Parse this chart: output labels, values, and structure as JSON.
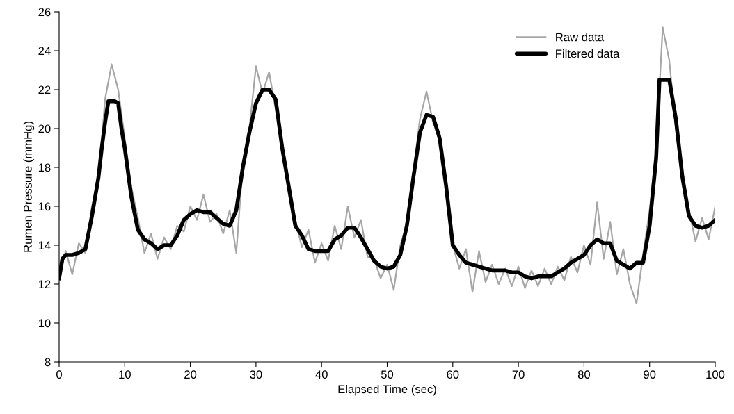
{
  "chart_data": {
    "type": "line",
    "xlabel": "Elapsed Time (sec)",
    "ylabel": "Rumen Pressure (mmHg)",
    "xlim": [
      0,
      100
    ],
    "xticks": [
      0,
      10,
      20,
      30,
      40,
      50,
      60,
      70,
      80,
      90,
      100
    ],
    "ylim": [
      8,
      26
    ],
    "yticks": [
      8,
      10,
      12,
      14,
      16,
      18,
      20,
      22,
      24,
      26
    ],
    "grid": false,
    "legend": "top right",
    "marker": "none",
    "line_style": "solid",
    "series": [
      {
        "name": "Raw data",
        "color": "#a6a6a6",
        "x": [
          0,
          1,
          2,
          3,
          4,
          5,
          6,
          7,
          8,
          9,
          10,
          11,
          12,
          13,
          14,
          15,
          16,
          17,
          18,
          19,
          20,
          21,
          22,
          23,
          24,
          25,
          26,
          27,
          28,
          29,
          30,
          31,
          32,
          33,
          34,
          35,
          36,
          37,
          38,
          39,
          40,
          41,
          42,
          43,
          44,
          45,
          46,
          47,
          48,
          49,
          50,
          51,
          52,
          53,
          54,
          55,
          56,
          57,
          58,
          59,
          60,
          61,
          62,
          63,
          64,
          65,
          66,
          67,
          68,
          69,
          70,
          71,
          72,
          73,
          74,
          75,
          76,
          77,
          78,
          79,
          80,
          81,
          82,
          83,
          84,
          85,
          86,
          87,
          88,
          89,
          90,
          91,
          92,
          93,
          94,
          95,
          96,
          97,
          98,
          99,
          100
        ],
        "values": [
          12.4,
          13.7,
          12.5,
          14.1,
          13.6,
          16.0,
          17.3,
          21.5,
          23.3,
          22.0,
          19.5,
          17.0,
          15.4,
          13.6,
          14.6,
          13.3,
          14.4,
          13.8,
          15.0,
          14.7,
          16.0,
          15.3,
          16.6,
          15.2,
          15.6,
          14.6,
          15.8,
          13.6,
          18.2,
          20.0,
          23.2,
          21.8,
          22.9,
          21.0,
          19.2,
          16.8,
          15.3,
          13.9,
          14.8,
          13.1,
          14.1,
          13.2,
          15.0,
          13.8,
          16.0,
          14.4,
          15.3,
          13.4,
          13.3,
          12.3,
          13.0,
          11.7,
          14.0,
          15.0,
          17.8,
          20.5,
          21.9,
          20.3,
          19.8,
          16.8,
          14.0,
          12.8,
          13.8,
          11.6,
          13.7,
          12.1,
          13.0,
          12.0,
          12.8,
          11.9,
          12.9,
          11.8,
          12.7,
          11.9,
          12.8,
          12.0,
          12.9,
          12.2,
          13.4,
          12.6,
          14.0,
          13.0,
          16.2,
          13.3,
          15.2,
          12.5,
          13.8,
          12.0,
          11.0,
          13.5,
          15.8,
          19.0,
          25.2,
          23.5,
          20.0,
          17.5,
          15.8,
          14.2,
          15.4,
          14.3,
          16.0
        ]
      },
      {
        "name": "Filtered data",
        "color": "#000000",
        "x": [
          0,
          0.5,
          1,
          2,
          3,
          4,
          5,
          6,
          6.5,
          7,
          7.5,
          8.5,
          9,
          9.5,
          10,
          11,
          12,
          13,
          14,
          15,
          16,
          17,
          18,
          19,
          20,
          21,
          22,
          23,
          24,
          25,
          26,
          27,
          28,
          29,
          30,
          31,
          32,
          33,
          34,
          35,
          36,
          37,
          38,
          39,
          40,
          41,
          42,
          43,
          44,
          45,
          46,
          47,
          48,
          49,
          50,
          51,
          52,
          53,
          54,
          55,
          56,
          57,
          58,
          59,
          60,
          61,
          62,
          63,
          64,
          65,
          66,
          67,
          68,
          69,
          70,
          71,
          72,
          73,
          74,
          75,
          76,
          77,
          78,
          79,
          80,
          81,
          82,
          83,
          84,
          85,
          86,
          87,
          88,
          89,
          90,
          91,
          91.5,
          93,
          94,
          95,
          96,
          97,
          98,
          99,
          100
        ],
        "values": [
          12.3,
          13.3,
          13.5,
          13.5,
          13.6,
          13.8,
          15.5,
          17.5,
          19.0,
          20.3,
          21.4,
          21.4,
          21.3,
          20.0,
          19.0,
          16.5,
          14.8,
          14.3,
          14.1,
          13.8,
          14.0,
          14.0,
          14.5,
          15.3,
          15.6,
          15.8,
          15.7,
          15.7,
          15.4,
          15.1,
          15.0,
          15.8,
          18.0,
          19.8,
          21.3,
          22.0,
          22.0,
          21.5,
          19.0,
          17.0,
          15.0,
          14.5,
          13.8,
          13.7,
          13.7,
          13.7,
          14.3,
          14.5,
          14.9,
          14.9,
          14.4,
          13.8,
          13.2,
          12.9,
          12.8,
          12.9,
          13.5,
          15.0,
          17.5,
          19.8,
          20.7,
          20.6,
          19.5,
          17.0,
          14.0,
          13.5,
          13.1,
          13.0,
          12.9,
          12.8,
          12.7,
          12.7,
          12.7,
          12.6,
          12.6,
          12.4,
          12.3,
          12.4,
          12.4,
          12.4,
          12.6,
          12.8,
          13.1,
          13.3,
          13.5,
          14.0,
          14.3,
          14.1,
          14.1,
          13.2,
          13.0,
          12.8,
          13.1,
          13.1,
          15.0,
          18.5,
          22.5,
          22.5,
          20.5,
          17.5,
          15.5,
          15.0,
          14.9,
          15.0,
          15.3
        ]
      }
    ]
  }
}
